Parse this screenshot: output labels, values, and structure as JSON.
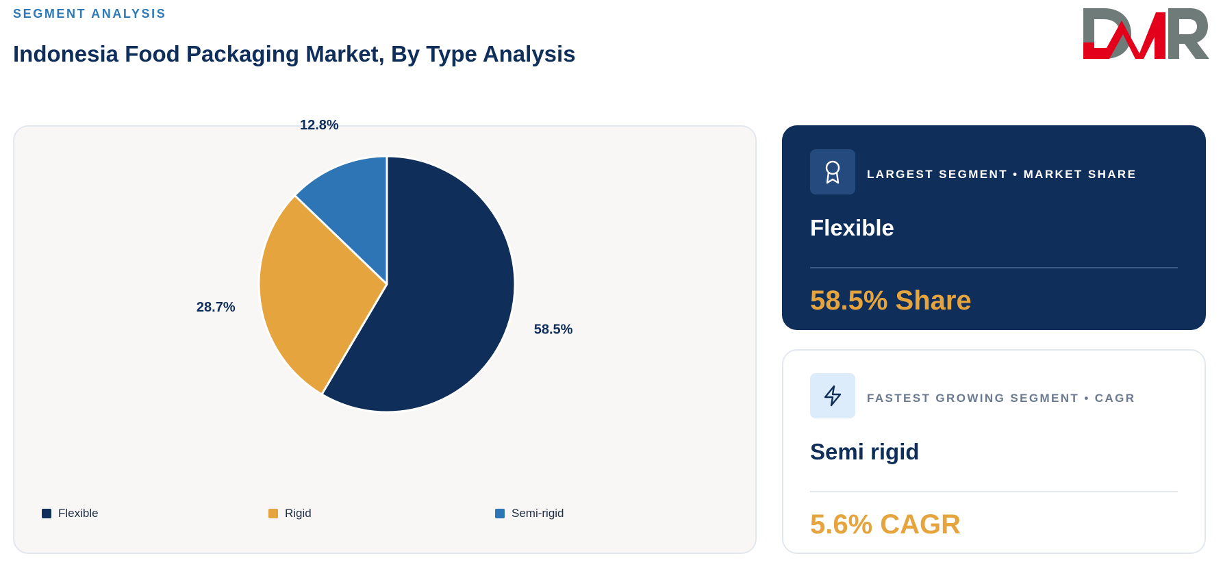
{
  "header": {
    "eyebrow": "SEGMENT ANALYSIS",
    "title": "Indonesia Food Packaging Market, By Type Analysis"
  },
  "logo": {
    "text": "DMR",
    "colors": {
      "grey": "#6f7b78",
      "red": "#e3001b"
    }
  },
  "chart_data": {
    "type": "pie",
    "categories": [
      "Flexible",
      "Rigid",
      "Semi-rigid"
    ],
    "values": [
      58.5,
      28.7,
      12.8
    ],
    "labels": [
      "58.5%",
      "28.7%",
      "12.8%"
    ],
    "colors": [
      "#0f2e5a",
      "#e5a43d",
      "#2e75b6"
    ],
    "legend": "bottom"
  },
  "cards": {
    "largest": {
      "icon": "award-icon",
      "label": "LARGEST SEGMENT • MARKET SHARE",
      "name": "Flexible",
      "value": "58.5% Share"
    },
    "fastest": {
      "icon": "lightning-icon",
      "label": "FASTEST GROWING SEGMENT • CAGR",
      "name": "Semi rigid",
      "value": "5.6% CAGR"
    }
  }
}
